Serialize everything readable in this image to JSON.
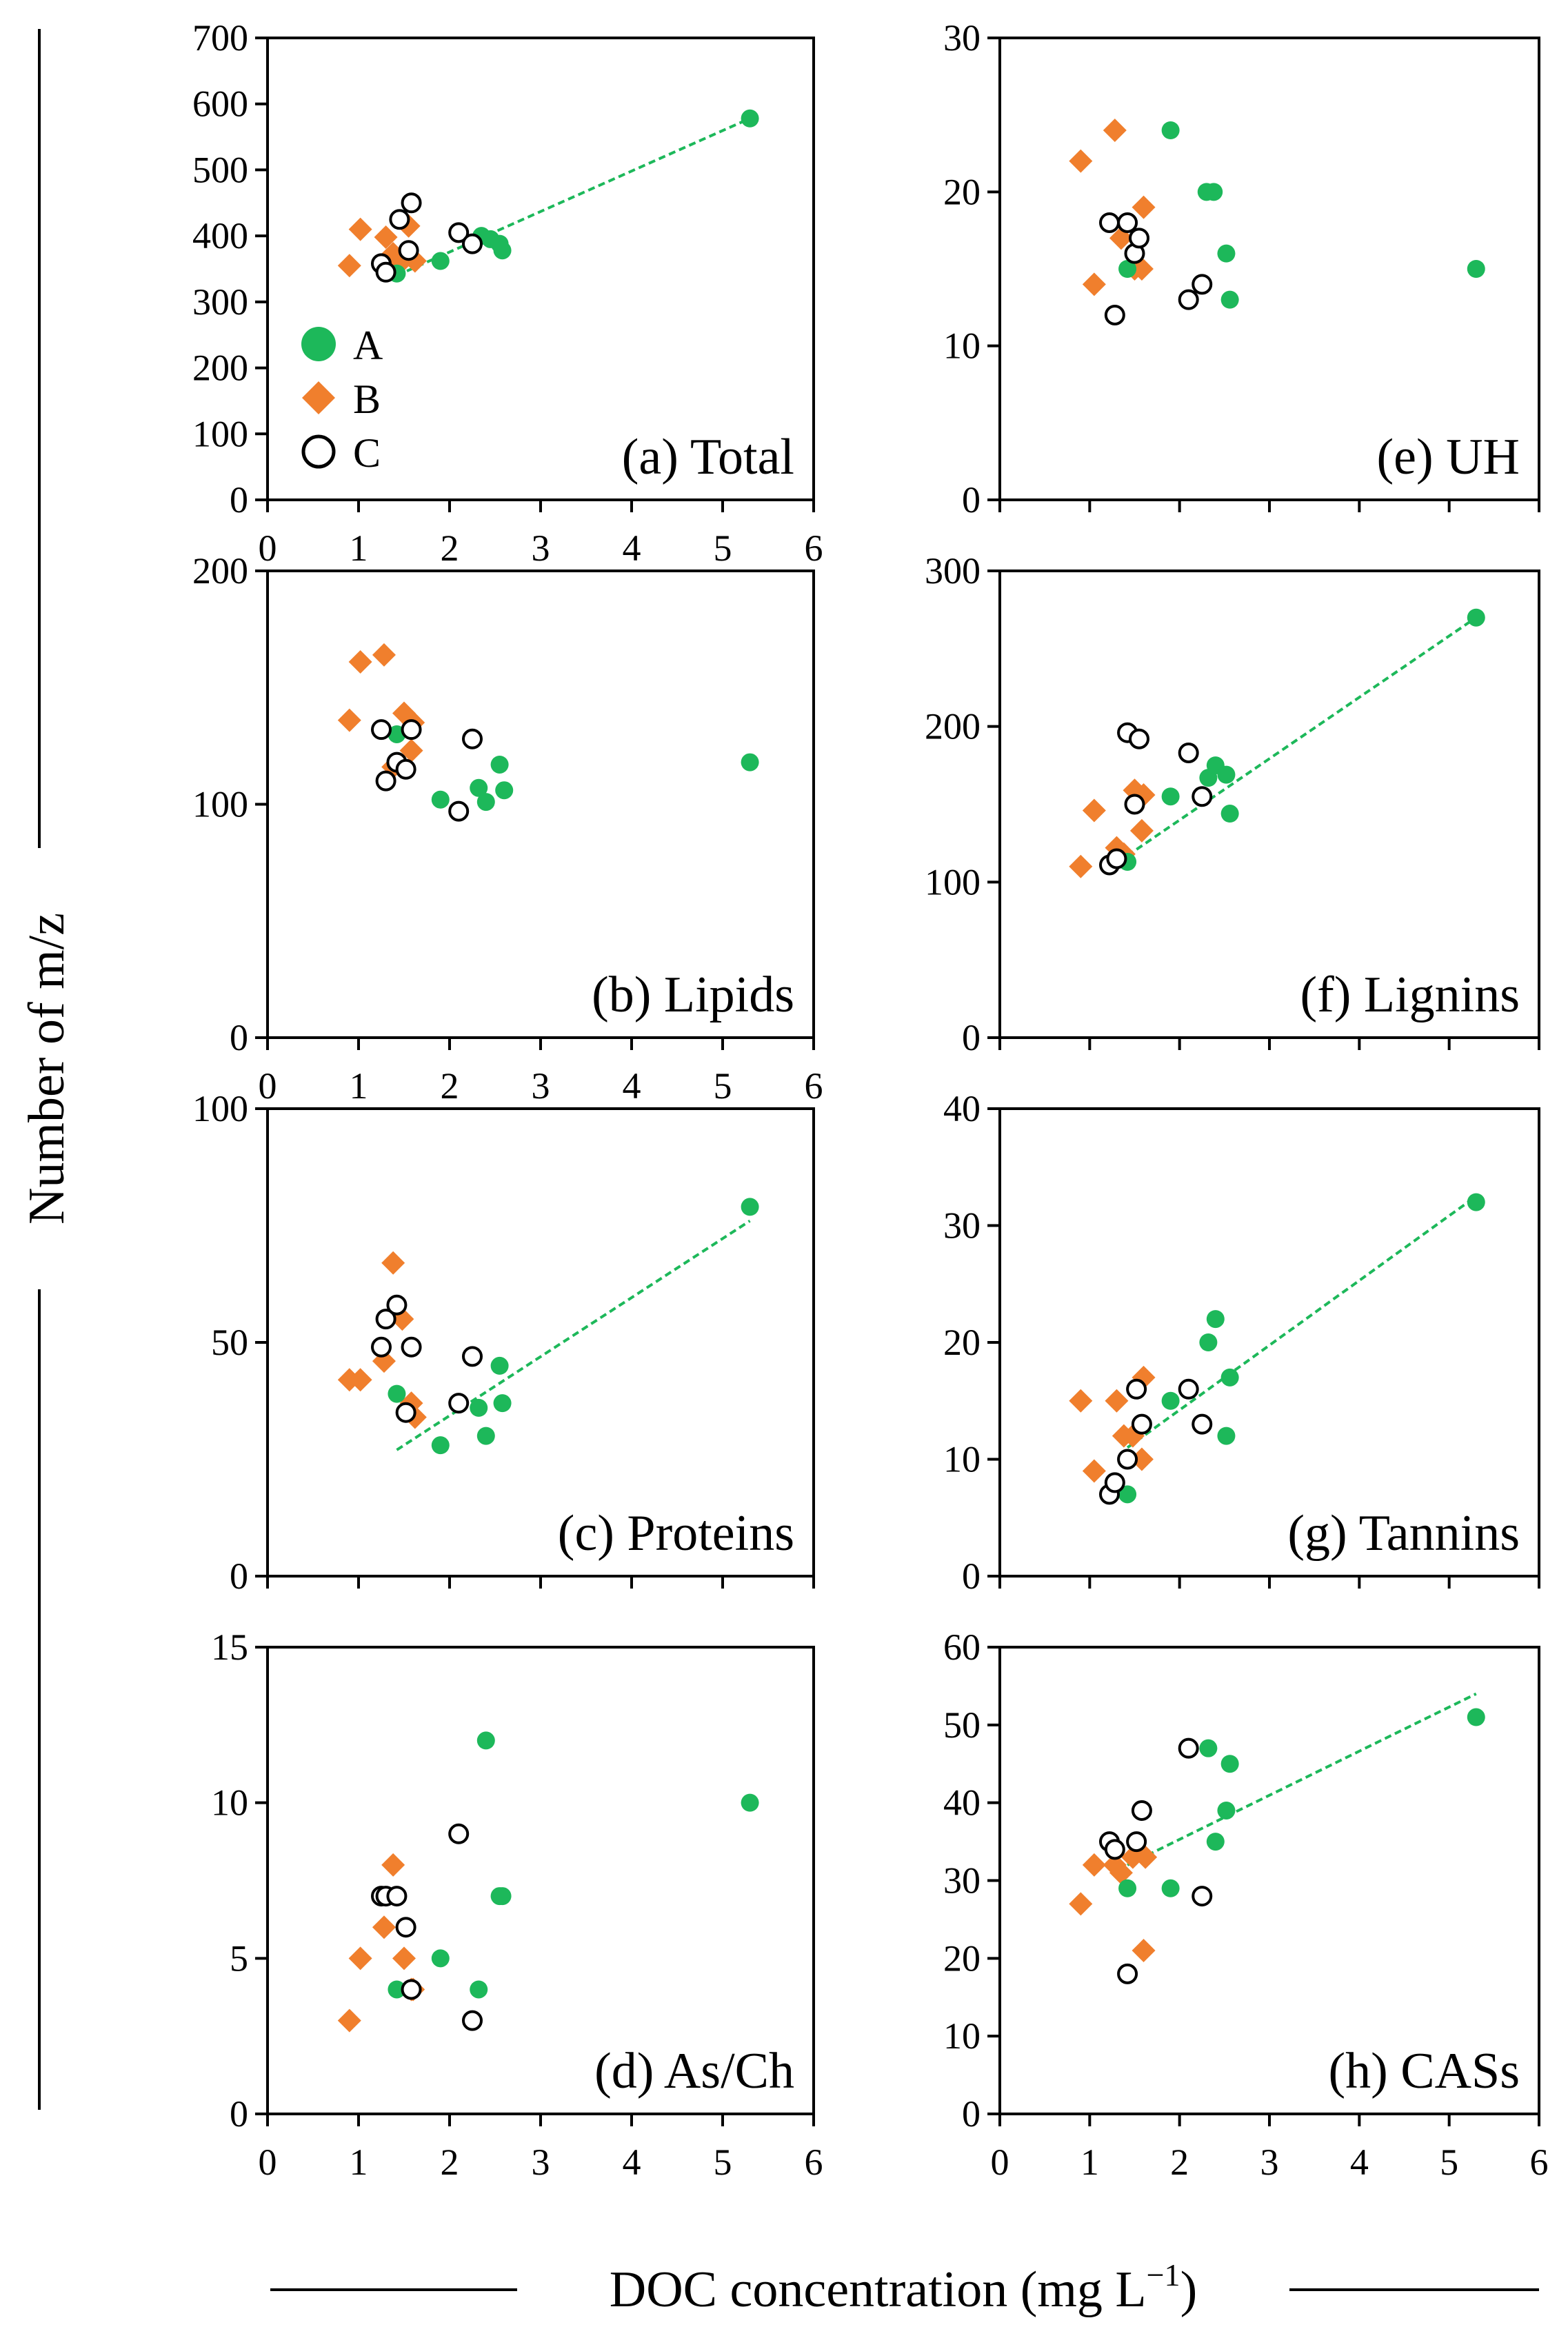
{
  "figure": {
    "ylabel": "Number of m/z",
    "xlabel_main": "DOC concentration (mg L",
    "xlabel_sup": "−1",
    "xlabel_close": ")"
  },
  "legend": {
    "entries": [
      {
        "label": "A",
        "marker": "circle-filled",
        "color": "#1db85a"
      },
      {
        "label": "B",
        "marker": "diamond",
        "color": "#f07f2d"
      },
      {
        "label": "C",
        "marker": "circle-open",
        "color": "#000000"
      }
    ]
  },
  "colors": {
    "A": "#1db85a",
    "B": "#f07f2d",
    "C": "#000000",
    "trend": "#1db85a"
  },
  "chart_data": [
    {
      "type": "scatter",
      "title": "(a) Total",
      "xlim": [
        0,
        6
      ],
      "ylim": [
        0,
        700
      ],
      "xticks": [
        "0",
        "1",
        "2",
        "3",
        "4",
        "5",
        "6"
      ],
      "yticks": [
        "0",
        "100",
        "200",
        "300",
        "400",
        "500",
        "600",
        "700"
      ],
      "trendline": {
        "x": [
          1.42,
          5.3
        ],
        "y": [
          340,
          578
        ]
      },
      "series": [
        {
          "name": "A",
          "x": [
            1.42,
            1.9,
            2.35,
            2.45,
            2.55,
            2.58,
            5.3
          ],
          "y": [
            343,
            362,
            400,
            395,
            388,
            378,
            578
          ]
        },
        {
          "name": "B",
          "x": [
            0.9,
            1.02,
            1.3,
            1.38,
            1.45,
            1.55,
            1.62
          ],
          "y": [
            355,
            410,
            398,
            373,
            358,
            415,
            362
          ]
        },
        {
          "name": "C",
          "x": [
            1.25,
            1.3,
            1.45,
            1.55,
            1.58,
            2.1,
            2.25
          ],
          "y": [
            358,
            345,
            425,
            378,
            450,
            405,
            388
          ]
        }
      ]
    },
    {
      "type": "scatter",
      "title": "(b) Lipids",
      "xlim": [
        0,
        6
      ],
      "ylim": [
        0,
        200
      ],
      "xticks": [
        "0",
        "1",
        "2",
        "3",
        "4",
        "5",
        "6"
      ],
      "yticks": [
        "0",
        "100",
        "200"
      ],
      "series": [
        {
          "name": "A",
          "x": [
            1.42,
            1.9,
            2.32,
            2.4,
            2.55,
            2.6,
            5.3
          ],
          "y": [
            130,
            102,
            107,
            101,
            117,
            106,
            118
          ]
        },
        {
          "name": "B",
          "x": [
            0.9,
            1.02,
            1.28,
            1.38,
            1.5,
            1.58,
            1.6
          ],
          "y": [
            136,
            161,
            164,
            116,
            139,
            123,
            135
          ]
        },
        {
          "name": "C",
          "x": [
            1.25,
            1.3,
            1.42,
            1.52,
            1.58,
            2.1,
            2.25
          ],
          "y": [
            132,
            110,
            118,
            115,
            132,
            97,
            128
          ]
        }
      ]
    },
    {
      "type": "scatter",
      "title": "(c) Proteins",
      "xlim": [
        0,
        6
      ],
      "ylim": [
        0,
        100
      ],
      "xticks": [],
      "yticks": [
        "0",
        "50",
        "100"
      ],
      "trendline": {
        "x": [
          1.42,
          5.3
        ],
        "y": [
          27,
          76
        ]
      },
      "series": [
        {
          "name": "A",
          "x": [
            1.42,
            1.9,
            2.32,
            2.4,
            2.55,
            2.58,
            5.3
          ],
          "y": [
            39,
            28,
            36,
            30,
            45,
            37,
            79
          ]
        },
        {
          "name": "B",
          "x": [
            0.9,
            1.02,
            1.28,
            1.38,
            1.48,
            1.58,
            1.62
          ],
          "y": [
            42,
            42,
            46,
            67,
            55,
            37,
            34
          ]
        },
        {
          "name": "C",
          "x": [
            1.25,
            1.3,
            1.42,
            1.52,
            1.58,
            2.1,
            2.25
          ],
          "y": [
            49,
            55,
            58,
            35,
            49,
            37,
            47
          ]
        }
      ]
    },
    {
      "type": "scatter",
      "title": "(d) As/Ch",
      "xlim": [
        0,
        6
      ],
      "ylim": [
        0,
        15
      ],
      "xticks": [
        "0",
        "1",
        "2",
        "3",
        "4",
        "5",
        "6"
      ],
      "yticks": [
        "0",
        "5",
        "10",
        "15"
      ],
      "series": [
        {
          "name": "A",
          "x": [
            1.42,
            1.9,
            2.32,
            2.4,
            2.55,
            2.58,
            5.3
          ],
          "y": [
            4,
            5,
            4,
            12,
            7,
            7,
            10
          ]
        },
        {
          "name": "B",
          "x": [
            0.9,
            1.02,
            1.28,
            1.38,
            1.5,
            1.58,
            1.6
          ],
          "y": [
            3,
            5,
            6,
            8,
            5,
            4,
            4
          ]
        },
        {
          "name": "C",
          "x": [
            1.25,
            1.3,
            1.42,
            1.52,
            1.58,
            2.1,
            2.25
          ],
          "y": [
            7,
            7,
            7,
            6,
            4,
            9,
            3
          ]
        }
      ]
    },
    {
      "type": "scatter",
      "title": "(e) UH",
      "xlim": [
        0,
        6
      ],
      "ylim": [
        0,
        30
      ],
      "xticks": [],
      "yticks": [
        "0",
        "10",
        "20",
        "30"
      ],
      "series": [
        {
          "name": "A",
          "x": [
            1.42,
            1.9,
            2.3,
            2.38,
            2.52,
            2.56,
            5.3
          ],
          "y": [
            15,
            24,
            20,
            20,
            16,
            13,
            15
          ]
        },
        {
          "name": "B",
          "x": [
            0.9,
            1.05,
            1.28,
            1.35,
            1.5,
            1.58,
            1.6
          ],
          "y": [
            22,
            14,
            24,
            17,
            15,
            15,
            19
          ]
        },
        {
          "name": "C",
          "x": [
            1.22,
            1.28,
            1.42,
            1.5,
            1.55,
            2.1,
            2.25
          ],
          "y": [
            18,
            12,
            18,
            16,
            17,
            13,
            14
          ]
        }
      ]
    },
    {
      "type": "scatter",
      "title": "(f) Lignins",
      "xlim": [
        0,
        6
      ],
      "ylim": [
        0,
        300
      ],
      "xticks": [],
      "yticks": [
        "0",
        "100",
        "200",
        "300"
      ],
      "trendline": {
        "x": [
          1.42,
          5.3
        ],
        "y": [
          117,
          270
        ]
      },
      "series": [
        {
          "name": "A",
          "x": [
            1.42,
            1.9,
            2.32,
            2.4,
            2.52,
            2.56,
            5.3
          ],
          "y": [
            113,
            155,
            167,
            175,
            169,
            144,
            270
          ]
        },
        {
          "name": "B",
          "x": [
            0.9,
            1.05,
            1.3,
            1.38,
            1.5,
            1.58,
            1.6
          ],
          "y": [
            110,
            146,
            122,
            118,
            159,
            133,
            156
          ]
        },
        {
          "name": "C",
          "x": [
            1.22,
            1.3,
            1.42,
            1.5,
            1.55,
            2.1,
            2.25
          ],
          "y": [
            111,
            115,
            196,
            150,
            192,
            183,
            155
          ]
        }
      ]
    },
    {
      "type": "scatter",
      "title": "(g) Tannins",
      "xlim": [
        0,
        6
      ],
      "ylim": [
        0,
        40
      ],
      "xticks": [],
      "yticks": [
        "0",
        "10",
        "20",
        "30",
        "40"
      ],
      "trendline": {
        "x": [
          1.42,
          5.3
        ],
        "y": [
          11,
          32.5
        ]
      },
      "series": [
        {
          "name": "A",
          "x": [
            1.42,
            1.9,
            2.32,
            2.4,
            2.52,
            2.56,
            5.3
          ],
          "y": [
            7,
            15,
            20,
            22,
            12,
            17,
            32
          ]
        },
        {
          "name": "B",
          "x": [
            0.9,
            1.05,
            1.3,
            1.38,
            1.48,
            1.58,
            1.6
          ],
          "y": [
            15,
            9,
            15,
            12,
            12,
            10,
            17
          ]
        },
        {
          "name": "C",
          "x": [
            1.22,
            1.28,
            1.42,
            1.52,
            1.58,
            2.1,
            2.25
          ],
          "y": [
            7,
            8,
            10,
            16,
            13,
            16,
            13
          ]
        }
      ]
    },
    {
      "type": "scatter",
      "title": "(h) CASs",
      "xlim": [
        0,
        6
      ],
      "ylim": [
        0,
        60
      ],
      "xticks": [
        "0",
        "1",
        "2",
        "3",
        "4",
        "5",
        "6"
      ],
      "yticks": [
        "0",
        "10",
        "20",
        "30",
        "40",
        "50",
        "60"
      ],
      "trendline": {
        "x": [
          1.42,
          5.3
        ],
        "y": [
          32,
          54
        ]
      },
      "series": [
        {
          "name": "A",
          "x": [
            1.42,
            1.9,
            2.32,
            2.4,
            2.52,
            2.56,
            5.3
          ],
          "y": [
            29,
            29,
            47,
            35,
            39,
            45,
            51
          ]
        },
        {
          "name": "B",
          "x": [
            0.9,
            1.05,
            1.28,
            1.35,
            1.48,
            1.6,
            1.62
          ],
          "y": [
            27,
            32,
            32,
            31,
            33,
            21,
            33
          ]
        },
        {
          "name": "C",
          "x": [
            1.22,
            1.28,
            1.42,
            1.52,
            1.58,
            2.1,
            2.25
          ],
          "y": [
            35,
            34,
            18,
            35,
            39,
            47,
            28
          ]
        }
      ]
    }
  ]
}
